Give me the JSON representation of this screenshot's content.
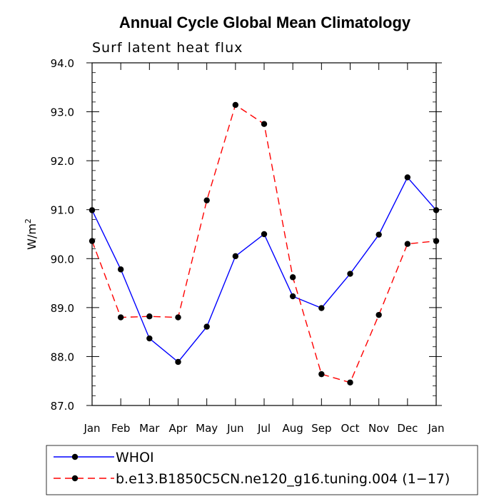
{
  "chart_data": {
    "type": "line",
    "title": "Annual Cycle Global Mean Climatology",
    "subtitle": "Surf latent heat flux",
    "ylabel": "W/m",
    "ylabel_sup": "2",
    "xlabel": "",
    "categories": [
      "Jan",
      "Feb",
      "Mar",
      "Apr",
      "May",
      "Jun",
      "Jul",
      "Aug",
      "Sep",
      "Oct",
      "Nov",
      "Dec",
      "Jan"
    ],
    "ylim": [
      87.0,
      94.0
    ],
    "yticks": [
      "87.0",
      "88.0",
      "89.0",
      "90.0",
      "91.0",
      "92.0",
      "93.0",
      "94.0"
    ],
    "grid": false,
    "legend_position": "bottom",
    "series": [
      {
        "name": "WHOI",
        "color": "#0000ff",
        "dash": "solid",
        "values": [
          90.99,
          89.78,
          88.37,
          87.89,
          88.61,
          90.05,
          90.5,
          89.23,
          88.99,
          89.69,
          90.49,
          91.66,
          90.99
        ]
      },
      {
        "name": "b.e13.B1850C5CN.ne120_g16.tuning.004 (1−17)",
        "color": "#ff0000",
        "dash": "dashed",
        "values": [
          90.36,
          88.8,
          88.82,
          88.8,
          91.19,
          93.14,
          92.75,
          89.62,
          87.64,
          87.47,
          88.85,
          90.3,
          90.36
        ]
      }
    ]
  }
}
